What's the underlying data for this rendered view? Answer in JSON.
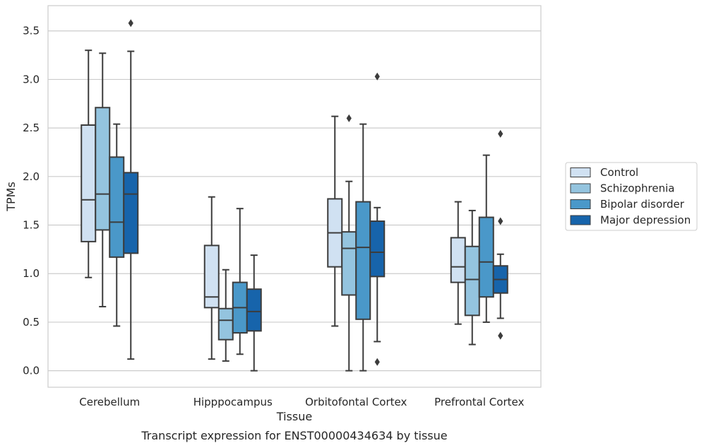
{
  "chart_data": {
    "type": "box",
    "title": "",
    "caption": "Transcript expression for ENST00000434634 by tissue",
    "xlabel": "Tissue",
    "ylabel": "TPMs",
    "ylim": [
      -0.17,
      3.76
    ],
    "yticks": [
      0.0,
      0.5,
      1.0,
      1.5,
      2.0,
      2.5,
      3.0,
      3.5
    ],
    "ytick_labels": [
      "0.0",
      "0.5",
      "1.0",
      "1.5",
      "2.0",
      "2.5",
      "3.0",
      "3.5"
    ],
    "grid": "horizontal",
    "legend_position": "right",
    "categories": [
      "Cerebellum",
      "Hipppocampus",
      "Orbitofontal Cortex",
      "Prefrontal Cortex"
    ],
    "series": [
      {
        "name": "Control",
        "color": "#d0e1f2",
        "boxes": [
          {
            "whislo": 0.96,
            "q1": 1.33,
            "med": 1.76,
            "q3": 2.53,
            "whishi": 3.3,
            "fliers": []
          },
          {
            "whislo": 0.12,
            "q1": 0.65,
            "med": 0.76,
            "q3": 1.29,
            "whishi": 1.79,
            "fliers": []
          },
          {
            "whislo": 0.46,
            "q1": 1.07,
            "med": 1.42,
            "q3": 1.77,
            "whishi": 2.62,
            "fliers": []
          },
          {
            "whislo": 0.48,
            "q1": 0.91,
            "med": 1.07,
            "q3": 1.37,
            "whishi": 1.74,
            "fliers": []
          }
        ]
      },
      {
        "name": "Schizophrenia",
        "color": "#94c4df",
        "boxes": [
          {
            "whislo": 0.66,
            "q1": 1.45,
            "med": 1.82,
            "q3": 2.71,
            "whishi": 3.27,
            "fliers": []
          },
          {
            "whislo": 0.1,
            "q1": 0.32,
            "med": 0.52,
            "q3": 0.64,
            "whishi": 1.04,
            "fliers": []
          },
          {
            "whislo": 0.0,
            "q1": 0.78,
            "med": 1.26,
            "q3": 1.43,
            "whishi": 1.95,
            "fliers": [
              2.6
            ]
          },
          {
            "whislo": 0.27,
            "q1": 0.57,
            "med": 0.94,
            "q3": 1.28,
            "whishi": 1.65,
            "fliers": []
          }
        ]
      },
      {
        "name": "Bipolar disorder",
        "color": "#4a98c9",
        "boxes": [
          {
            "whislo": 0.46,
            "q1": 1.17,
            "med": 1.53,
            "q3": 2.2,
            "whishi": 2.54,
            "fliers": []
          },
          {
            "whislo": 0.17,
            "q1": 0.39,
            "med": 0.65,
            "q3": 0.91,
            "whishi": 1.67,
            "fliers": []
          },
          {
            "whislo": 0.0,
            "q1": 0.53,
            "med": 1.27,
            "q3": 1.74,
            "whishi": 2.54,
            "fliers": []
          },
          {
            "whislo": 0.5,
            "q1": 0.76,
            "med": 1.12,
            "q3": 1.58,
            "whishi": 2.22,
            "fliers": []
          }
        ]
      },
      {
        "name": "Major depression",
        "color": "#1764ab",
        "boxes": [
          {
            "whislo": 0.12,
            "q1": 1.21,
            "med": 1.82,
            "q3": 2.04,
            "whishi": 3.29,
            "fliers": [
              3.58
            ]
          },
          {
            "whislo": 0.0,
            "q1": 0.41,
            "med": 0.61,
            "q3": 0.84,
            "whishi": 1.19,
            "fliers": []
          },
          {
            "whislo": 0.3,
            "q1": 0.97,
            "med": 1.22,
            "q3": 1.54,
            "whishi": 1.68,
            "fliers": [
              3.03,
              0.09
            ]
          },
          {
            "whislo": 0.54,
            "q1": 0.8,
            "med": 0.94,
            "q3": 1.08,
            "whishi": 1.2,
            "fliers": [
              2.44,
              1.54,
              0.36
            ]
          }
        ]
      }
    ]
  }
}
